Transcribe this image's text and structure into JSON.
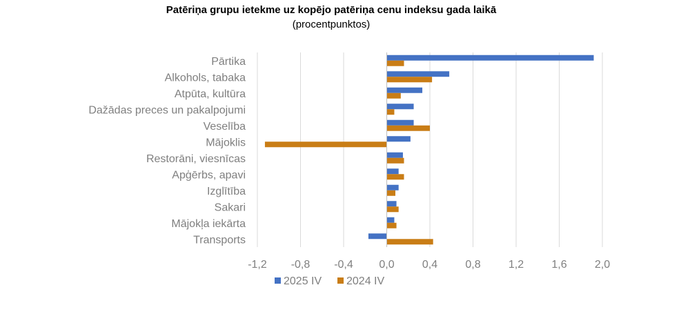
{
  "chart_data": {
    "type": "bar",
    "orientation": "horizontal",
    "title": "Patēriņa grupu ietekme uz kopējo patēriņa cenu indeksu gada laikā",
    "subtitle": "(procentpunktos)",
    "categories": [
      "Pārtika",
      "Alkohols, tabaka",
      "Atpūta, kultūra",
      "Dažādas preces un pakalpojumi",
      "Veselība",
      "Mājoklis",
      "Restorāni, viesnīcas",
      "Apģērbs, apavi",
      "Izglītība",
      "Sakari",
      "Mājokļa iekārta",
      "Transports"
    ],
    "series": [
      {
        "name": "2025 IV",
        "color": "#4472c4",
        "values": [
          1.92,
          0.58,
          0.33,
          0.25,
          0.25,
          0.22,
          0.15,
          0.11,
          0.11,
          0.09,
          0.07,
          -0.17
        ]
      },
      {
        "name": "2024 IV",
        "color": "#c97d16",
        "values": [
          0.16,
          0.42,
          0.13,
          0.07,
          0.4,
          -1.13,
          0.16,
          0.16,
          0.08,
          0.11,
          0.09,
          0.43
        ]
      }
    ],
    "xlim": [
      -1.2,
      2.0
    ],
    "xticks": [
      "-1,2",
      "-0,8",
      "-0,4",
      "0,0",
      "0,4",
      "0,8",
      "1,2",
      "1,6",
      "2,0"
    ],
    "grid": true,
    "legend_position": "bottom"
  }
}
